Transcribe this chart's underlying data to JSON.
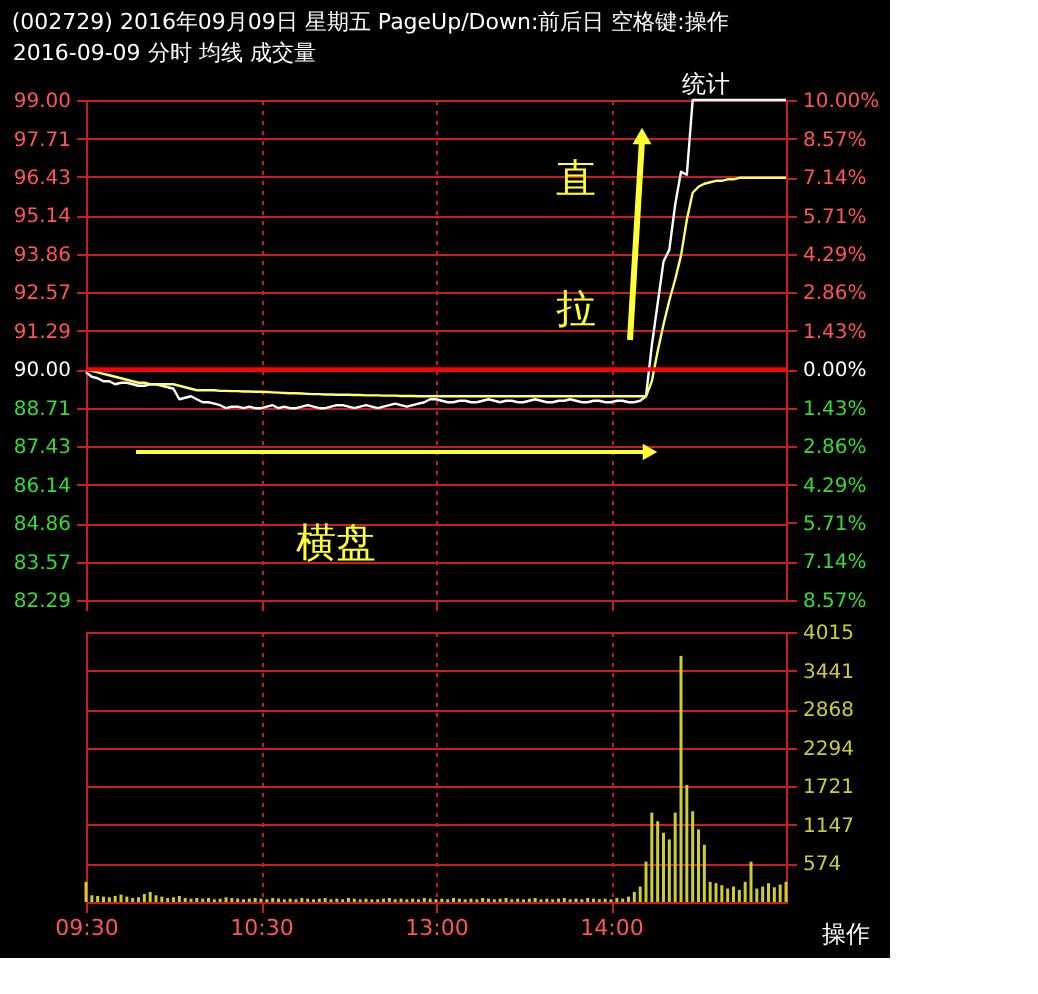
{
  "chart_data": [
    {
      "type": "line",
      "title": "(002729) 2016年09月09日 星期五 PageUp/Down:前后日 空格键:操作",
      "subtitle": "2016-09-09 分时 均线 成交量",
      "annotations": [
        "统计",
        "直",
        "拉",
        "横盘"
      ],
      "categories": [
        null,
        null,
        null,
        null,
        null,
        null,
        null,
        null,
        null,
        null,
        null,
        null,
        null,
        null,
        null,
        null,
        null,
        null,
        null,
        null,
        null,
        null,
        null,
        null,
        null,
        null,
        null,
        null,
        null,
        null,
        null,
        null,
        null,
        null,
        null,
        null,
        null,
        null,
        null,
        null,
        null,
        null,
        null,
        null,
        null,
        null,
        null,
        null,
        null,
        null,
        null,
        null,
        null,
        null,
        null,
        null,
        null,
        null,
        null,
        null,
        null,
        null,
        null,
        null,
        null,
        null,
        null,
        null,
        null,
        null,
        null,
        null,
        null,
        null,
        null,
        null,
        null,
        null,
        null,
        null,
        null,
        null,
        null,
        null,
        null,
        null,
        null,
        null,
        null,
        null,
        null,
        null,
        null,
        null,
        null,
        null,
        null,
        null,
        null,
        null,
        null,
        null,
        null,
        null,
        null,
        null,
        null,
        null,
        null,
        null,
        null,
        null,
        null,
        null,
        null,
        null,
        null,
        null,
        null,
        null,
        null
      ],
      "ylim": [
        82.29,
        99.0
      ],
      "yticks": [
        {
          "value": 99.0,
          "label": "99.00"
        },
        {
          "value": 97.71,
          "label": "97.71"
        },
        {
          "value": 96.43,
          "label": "96.43"
        },
        {
          "value": 95.14,
          "label": "95.14"
        },
        {
          "value": 93.86,
          "label": "93.86"
        },
        {
          "value": 92.57,
          "label": "92.57"
        },
        {
          "value": 91.29,
          "label": "91.29"
        },
        {
          "value": 90.0,
          "label": "90.00"
        },
        {
          "value": 88.71,
          "label": "88.71"
        },
        {
          "value": 87.43,
          "label": "87.43"
        },
        {
          "value": 86.14,
          "label": "86.14"
        },
        {
          "value": 84.86,
          "label": "84.86"
        },
        {
          "value": 83.57,
          "label": "83.57"
        },
        {
          "value": 82.29,
          "label": "82.29"
        }
      ],
      "y2lim": [
        -8.57,
        10.0
      ],
      "y2ticks": [
        {
          "value": 10.0,
          "label": "10.00%"
        },
        {
          "value": 8.57,
          "label": "8.57%"
        },
        {
          "value": 7.14,
          "label": "7.14%"
        },
        {
          "value": 5.71,
          "label": "5.71%"
        },
        {
          "value": 4.29,
          "label": "4.29%"
        },
        {
          "value": 2.86,
          "label": "2.86%"
        },
        {
          "value": 1.43,
          "label": "1.43%"
        },
        {
          "value": 0.0,
          "label": "0.00%"
        },
        {
          "value": -1.43,
          "label": "1.43%"
        },
        {
          "value": -2.86,
          "label": "2.86%"
        },
        {
          "value": -4.29,
          "label": "4.29%"
        },
        {
          "value": -5.71,
          "label": "5.71%"
        },
        {
          "value": -7.14,
          "label": "7.14%"
        },
        {
          "value": -8.57,
          "label": "8.57%"
        }
      ],
      "ref_lines": [
        {
          "axis": "y",
          "value": 90.0,
          "color": "#ff0000"
        }
      ],
      "grid": true,
      "tick_labels": "y",
      "line_style": "solid",
      "marker": "none",
      "series": [
        {
          "color": "#ffffff",
          "values": [
            89.9,
            89.75,
            89.7,
            89.6,
            89.6,
            89.5,
            89.55,
            89.55,
            89.5,
            89.45,
            89.45,
            89.5,
            89.5,
            89.45,
            89.4,
            89.35,
            89.0,
            89.05,
            89.1,
            89.0,
            88.9,
            88.9,
            88.85,
            88.8,
            88.7,
            88.75,
            88.75,
            88.7,
            88.75,
            88.7,
            88.7,
            88.75,
            88.8,
            88.7,
            88.75,
            88.7,
            88.7,
            88.75,
            88.8,
            88.75,
            88.7,
            88.7,
            88.75,
            88.8,
            88.8,
            88.75,
            88.7,
            88.75,
            88.8,
            88.75,
            88.7,
            88.75,
            88.8,
            88.85,
            88.8,
            88.75,
            88.8,
            88.85,
            88.9,
            89.0,
            89.0,
            88.95,
            88.9,
            88.9,
            88.95,
            88.95,
            88.9,
            88.9,
            88.95,
            89.0,
            88.95,
            88.9,
            88.95,
            88.95,
            88.9,
            88.9,
            88.95,
            89.0,
            88.95,
            88.9,
            88.9,
            88.95,
            88.95,
            89.0,
            88.95,
            88.9,
            88.9,
            88.95,
            88.95,
            88.9,
            88.9,
            88.95,
            88.95,
            88.9,
            88.9,
            88.95,
            89.1,
            90.8,
            92.2,
            93.6,
            94.0,
            95.5,
            96.6,
            96.5,
            99.0,
            99.0,
            99.0,
            99.0,
            99.0,
            99.0,
            99.0,
            99.0,
            99.0,
            99.0,
            99.0,
            99.0,
            99.0,
            99.0,
            99.0,
            99.0,
            99.0
          ]
        },
        {
          "color": "#ffff66",
          "values": [
            90.0,
            89.95,
            89.9,
            89.85,
            89.8,
            89.75,
            89.7,
            89.65,
            89.6,
            89.55,
            89.55,
            89.5,
            89.5,
            89.5,
            89.5,
            89.5,
            89.45,
            89.4,
            89.35,
            89.3,
            89.3,
            89.3,
            89.3,
            89.28,
            89.28,
            89.27,
            89.27,
            89.26,
            89.26,
            89.25,
            89.25,
            89.24,
            89.23,
            89.22,
            89.21,
            89.2,
            89.2,
            89.19,
            89.18,
            89.17,
            89.17,
            89.16,
            89.16,
            89.15,
            89.15,
            89.15,
            89.14,
            89.14,
            89.13,
            89.13,
            89.13,
            89.12,
            89.12,
            89.12,
            89.11,
            89.11,
            89.11,
            89.1,
            89.1,
            89.1,
            89.1,
            89.1,
            89.1,
            89.1,
            89.1,
            89.1,
            89.1,
            89.1,
            89.1,
            89.1,
            89.1,
            89.1,
            89.1,
            89.1,
            89.1,
            89.1,
            89.1,
            89.1,
            89.1,
            89.1,
            89.1,
            89.1,
            89.1,
            89.1,
            89.1,
            89.1,
            89.1,
            89.1,
            89.1,
            89.1,
            89.1,
            89.1,
            89.1,
            89.1,
            89.1,
            89.1,
            89.1,
            89.6,
            90.6,
            91.5,
            92.3,
            93.0,
            93.8,
            95.0,
            95.9,
            96.1,
            96.2,
            96.25,
            96.3,
            96.3,
            96.35,
            96.35,
            96.4,
            96.4,
            96.4,
            96.4,
            96.4,
            96.4,
            96.4,
            96.4,
            96.4
          ]
        }
      ]
    },
    {
      "type": "bar",
      "annotations": [
        "操作"
      ],
      "categories": [
        "09:30",
        null,
        null,
        null,
        null,
        null,
        null,
        null,
        null,
        null,
        null,
        null,
        null,
        null,
        null,
        null,
        null,
        null,
        null,
        null,
        null,
        null,
        null,
        null,
        null,
        null,
        null,
        null,
        null,
        null,
        "10:30",
        null,
        null,
        null,
        null,
        null,
        null,
        null,
        null,
        null,
        null,
        null,
        null,
        null,
        null,
        null,
        null,
        null,
        null,
        null,
        null,
        null,
        null,
        null,
        null,
        null,
        null,
        null,
        null,
        null,
        "13:00",
        null,
        null,
        null,
        null,
        null,
        null,
        null,
        null,
        null,
        null,
        null,
        null,
        null,
        null,
        null,
        null,
        null,
        null,
        null,
        null,
        null,
        null,
        null,
        null,
        null,
        null,
        null,
        null,
        null,
        "14:00",
        null,
        null,
        null,
        null,
        null,
        null,
        null,
        null,
        null,
        null,
        null,
        null,
        null,
        null,
        null,
        null,
        null,
        null,
        null,
        null,
        null,
        null,
        null,
        null,
        null,
        null,
        null,
        null,
        null,
        null
      ],
      "ylim": [
        0,
        4015
      ],
      "yticks": [
        574,
        1147,
        1721,
        2294,
        2868,
        3441,
        4015
      ],
      "grid": true,
      "color": "#cccc33",
      "values": [
        300,
        100,
        90,
        80,
        70,
        90,
        110,
        80,
        60,
        70,
        120,
        150,
        100,
        80,
        60,
        70,
        90,
        60,
        50,
        60,
        50,
        60,
        40,
        50,
        70,
        60,
        50,
        40,
        50,
        60,
        50,
        40,
        60,
        50,
        40,
        50,
        40,
        60,
        50,
        40,
        50,
        60,
        40,
        50,
        40,
        60,
        50,
        40,
        50,
        40,
        40,
        50,
        60,
        40,
        50,
        40,
        50,
        40,
        60,
        50,
        40,
        50,
        40,
        60,
        50,
        40,
        50,
        40,
        60,
        50,
        40,
        50,
        60,
        40,
        50,
        40,
        50,
        60,
        40,
        50,
        40,
        50,
        60,
        40,
        50,
        40,
        60,
        50,
        40,
        50,
        40,
        60,
        50,
        80,
        150,
        230,
        600,
        1330,
        1200,
        1030,
        930,
        1330,
        3660,
        1740,
        1350,
        1080,
        850,
        300,
        280,
        250,
        200,
        230,
        180,
        300,
        600,
        200,
        230,
        280,
        220,
        260,
        300
      ]
    }
  ]
}
